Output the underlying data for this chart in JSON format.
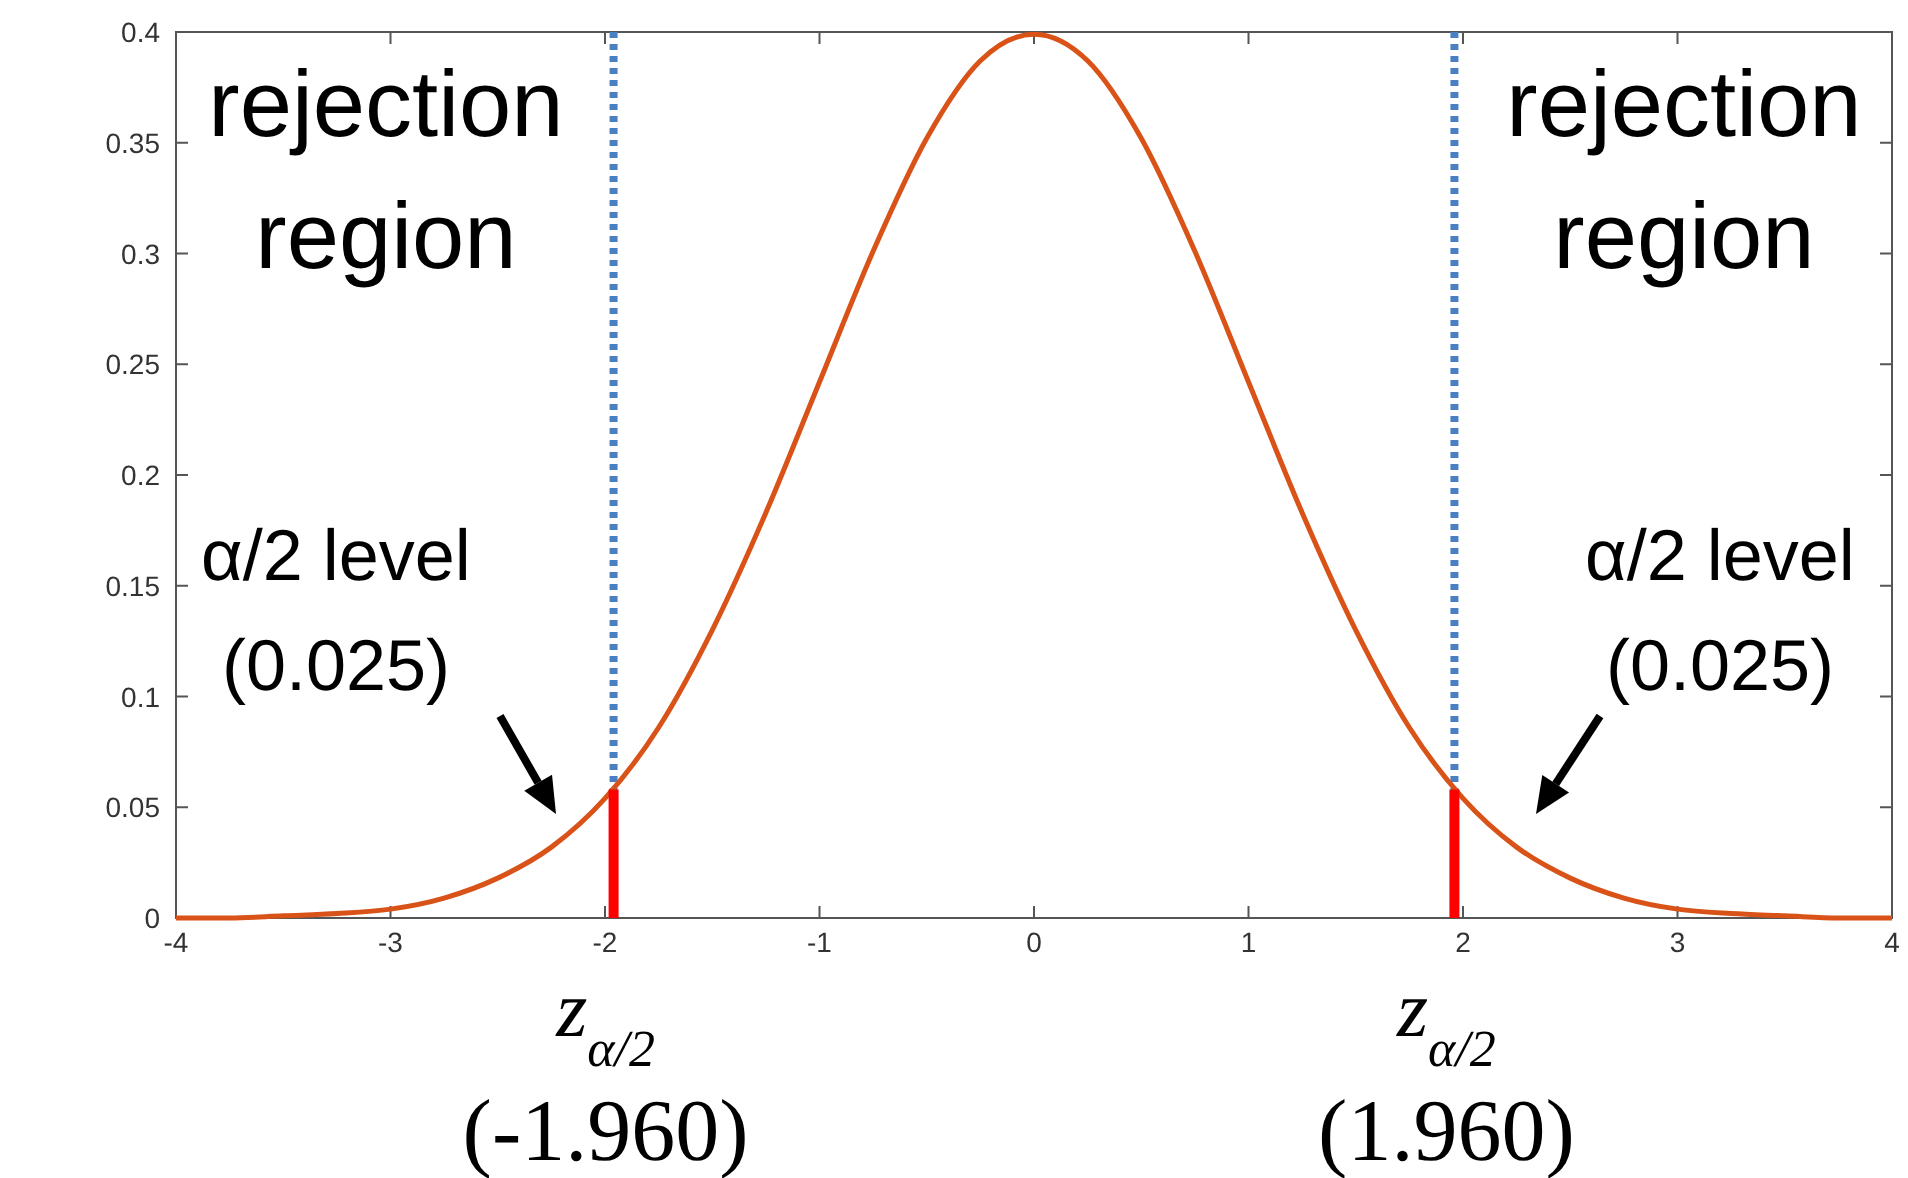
{
  "chart_data": {
    "type": "line",
    "xlim": [
      -4,
      4
    ],
    "ylim": [
      0,
      0.4
    ],
    "xticks": [
      -4,
      -3,
      -2,
      -1,
      0,
      1,
      2,
      3,
      4
    ],
    "yticks": [
      0,
      0.05,
      0.1,
      0.15,
      0.2,
      0.25,
      0.3,
      0.35,
      0.4
    ],
    "grid": false,
    "x": [
      -4,
      -3.75,
      -3.5,
      -3.25,
      -3,
      -2.75,
      -2.5,
      -2.25,
      -2,
      -1.75,
      -1.5,
      -1.25,
      -1,
      -0.75,
      -0.5,
      -0.25,
      0,
      0.25,
      0.5,
      0.75,
      1,
      1.25,
      1.5,
      1.75,
      2,
      2.25,
      2.5,
      2.75,
      3,
      3.25,
      3.5,
      3.75,
      4
    ],
    "series": [
      {
        "color": "#d95319",
        "values": [
          0,
          0,
          0.001,
          0.002,
          0.004,
          0.009,
          0.018,
          0.032,
          0.054,
          0.086,
          0.13,
          0.183,
          0.242,
          0.301,
          0.352,
          0.387,
          0.399,
          0.387,
          0.352,
          0.301,
          0.242,
          0.183,
          0.13,
          0.086,
          0.054,
          0.032,
          0.018,
          0.009,
          0.004,
          0.002,
          0.001,
          0,
          0
        ]
      },
      {
        "type": "bar",
        "color": "#ff0000",
        "x": [
          -1.96,
          1.96
        ],
        "values": [
          0.058,
          0.058
        ]
      }
    ],
    "ref_lines": [
      {
        "axis": "x",
        "value": -1.96,
        "color": "#4a7fc1",
        "line_style": "dotted"
      },
      {
        "axis": "x",
        "value": 1.96,
        "color": "#4a7fc1",
        "line_style": "dotted"
      }
    ],
    "annotations": [
      "rejection\nregion",
      "rejection\nregion",
      "α/2 level\n(0.025)",
      "α/2 level\n(0.025)",
      {
        "text": "z$_{α/2}$\n(-1.960)",
        "x": -1.96,
        "y": 0
      },
      {
        "text": "z$_{α/2}$\n(1.960)",
        "x": 1.96,
        "y": 0
      }
    ]
  }
}
